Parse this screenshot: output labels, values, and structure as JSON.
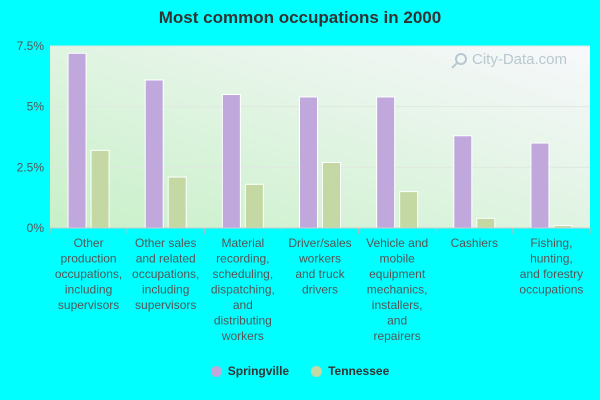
{
  "chart_data": {
    "type": "bar",
    "title": "Most common occupations in 2000",
    "categories": [
      [
        "Other",
        "production",
        "occupations,",
        "including",
        "supervisors"
      ],
      [
        "Other sales",
        "and related",
        "occupations,",
        "including",
        "supervisors"
      ],
      [
        "Material",
        "recording,",
        "scheduling,",
        "dispatching,",
        "and",
        "distributing",
        "workers"
      ],
      [
        "Driver/sales",
        "workers",
        "and truck",
        "drivers"
      ],
      [
        "Vehicle and",
        "mobile",
        "equipment",
        "mechanics,",
        "installers,",
        "and",
        "repairers"
      ],
      [
        "Cashiers"
      ],
      [
        "Fishing,",
        "hunting,",
        "and forestry",
        "occupations"
      ]
    ],
    "series": [
      {
        "name": "Springville",
        "color": "#c0a8dc",
        "values": [
          7.2,
          6.1,
          5.5,
          5.4,
          5.4,
          3.8,
          3.5
        ]
      },
      {
        "name": "Tennessee",
        "color": "#c4d8a4",
        "values": [
          3.2,
          2.1,
          1.8,
          2.7,
          1.5,
          0.4,
          0.1
        ]
      }
    ],
    "yticks": [
      "0%",
      "2.5%",
      "5%",
      "7.5%"
    ],
    "ytick_values": [
      0,
      2.5,
      5,
      7.5
    ],
    "ylim": [
      0,
      7.5
    ],
    "xlabel": "",
    "ylabel": "",
    "grid": true,
    "legend_position": "bottom-center"
  },
  "watermark": "City-Data.com"
}
